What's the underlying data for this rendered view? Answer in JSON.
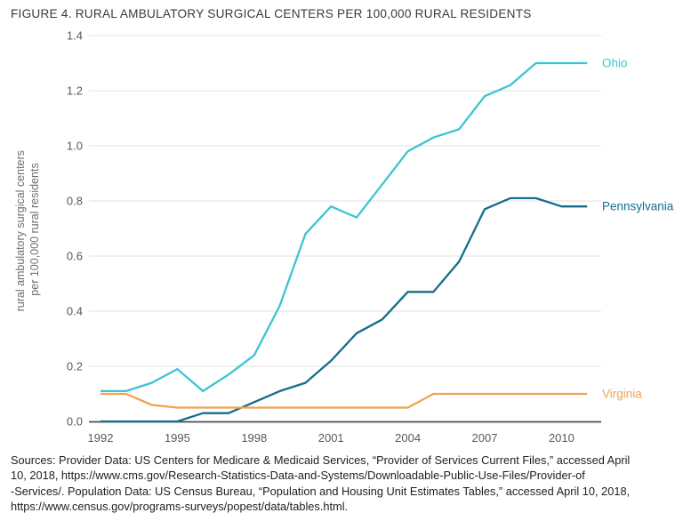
{
  "figure": {
    "title": "FIGURE 4. RURAL AMBULATORY SURGICAL CENTERS PER 100,000 RURAL RESIDENTS"
  },
  "chart_data": {
    "type": "line",
    "x": [
      1992,
      1993,
      1994,
      1995,
      1996,
      1997,
      1998,
      1999,
      2000,
      2001,
      2002,
      2003,
      2004,
      2005,
      2006,
      2007,
      2008,
      2009,
      2010,
      2011
    ],
    "series": [
      {
        "name": "Ohio",
        "color": "#3cc4d4",
        "values": [
          0.11,
          0.11,
          0.14,
          0.19,
          0.11,
          0.17,
          0.24,
          0.42,
          0.68,
          0.78,
          0.74,
          0.86,
          0.98,
          1.03,
          1.06,
          1.18,
          1.22,
          1.3,
          1.3,
          1.3
        ]
      },
      {
        "name": "Pennsylvania",
        "color": "#136e8c",
        "values": [
          0.0,
          0.0,
          0.0,
          0.0,
          0.03,
          0.03,
          0.07,
          0.11,
          0.14,
          0.22,
          0.32,
          0.37,
          0.47,
          0.47,
          0.58,
          0.77,
          0.81,
          0.81,
          0.78,
          0.78
        ]
      },
      {
        "name": "Virginia",
        "color": "#f1a24c",
        "values": [
          0.1,
          0.1,
          0.06,
          0.05,
          0.05,
          0.05,
          0.05,
          0.05,
          0.05,
          0.05,
          0.05,
          0.05,
          0.05,
          0.1,
          0.1,
          0.1,
          0.1,
          0.1,
          0.1,
          0.1
        ]
      }
    ],
    "ylabel_line1": "rural ambulatory surgical centers",
    "ylabel_line2": "per 100,000 rural residents",
    "yticks": [
      "0.0",
      "0.2",
      "0.4",
      "0.6",
      "0.8",
      "1.0",
      "1.2",
      "1.4"
    ],
    "xticks": [
      "1992",
      "1995",
      "1998",
      "2001",
      "2004",
      "2007",
      "2010"
    ],
    "ylim": [
      0.0,
      1.4
    ],
    "xlim": [
      1992,
      2011
    ],
    "grid": "horizontal",
    "legend_position": "right-of-line-ends",
    "axis_color": "#4b4b4d",
    "grid_color": "#e2e2e2",
    "tick_color": "#59595b",
    "ylabel_color": "#6e6e70"
  },
  "sources": {
    "lines": [
      "Sources: Provider Data: US Centers for Medicare & Medicaid Services, “Provider of Services Current Files,” accessed April",
      "10, 2018, https://www.cms.gov/Research-Statistics-Data-and-Systems/Downloadable-Public-Use-Files/Provider-of",
      "-Services/. Population Data: US Census Bureau, “Population and Housing Unit Estimates Tables,” accessed April 10, 2018,",
      "https://www.census.gov/programs-surveys/popest/data/tables.html."
    ]
  }
}
